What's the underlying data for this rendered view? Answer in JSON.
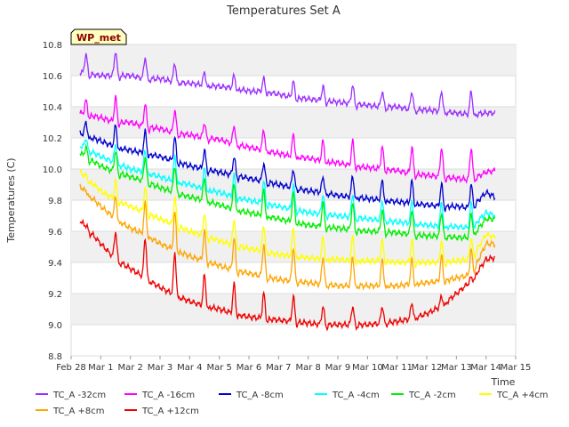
{
  "chart_data": {
    "type": "line",
    "title": "Temperatures Set A",
    "xlabel": "Time",
    "ylabel": "Temperatures (C)",
    "station_label": "WP_met",
    "x_ticks": [
      "Feb 28",
      "Mar 1",
      "Mar 2",
      "Mar 3",
      "Mar 4",
      "Mar 5",
      "Mar 6",
      "Mar 7",
      "Mar 8",
      "Mar 9",
      "Mar 10",
      "Mar 11",
      "Mar 12",
      "Mar 13",
      "Mar 14",
      "Mar 15"
    ],
    "x_tick_days": [
      0,
      1,
      2,
      3,
      4,
      5,
      6,
      7,
      8,
      9,
      10,
      11,
      12,
      13,
      14,
      15
    ],
    "xlim": [
      0,
      15
    ],
    "ylim": [
      8.8,
      10.8
    ],
    "y_ticks": [
      "8.8",
      "9.0",
      "9.2",
      "9.4",
      "9.6",
      "9.8",
      "10.0",
      "10.2",
      "10.4",
      "10.6",
      "10.8"
    ],
    "grid": "horizontal bands",
    "legend_position": "bottom",
    "x_unit": "days since Feb 28",
    "series": [
      {
        "name": "TC_A -32cm",
        "color": "#9b30ff",
        "x": [
          0.3,
          1,
          1.5,
          2,
          2.5,
          3,
          3.5,
          4,
          4.5,
          5,
          5.5,
          6,
          6.5,
          7,
          7.5,
          8,
          8.5,
          9,
          9.5,
          10,
          10.5,
          11,
          11.5,
          12,
          12.5,
          13,
          13.5,
          14,
          14.3
        ],
        "y": [
          10.62,
          10.6,
          10.6,
          10.6,
          10.58,
          10.58,
          10.56,
          10.55,
          10.54,
          10.53,
          10.52,
          10.5,
          10.5,
          10.48,
          10.46,
          10.45,
          10.44,
          10.43,
          10.42,
          10.41,
          10.4,
          10.4,
          10.38,
          10.38,
          10.37,
          10.36,
          10.35,
          10.36,
          10.36
        ],
        "peaks": [
          10.74,
          10.76,
          10.72,
          10.68,
          10.62,
          10.6,
          10.58,
          10.56,
          10.53,
          10.54,
          10.5,
          10.5,
          10.5,
          10.5,
          10.5
        ]
      },
      {
        "name": "TC_A -16cm",
        "color": "#ff00ff",
        "x": [
          0.3,
          1,
          1.5,
          2,
          2.5,
          3,
          3.5,
          4,
          4.5,
          5,
          5.5,
          6,
          6.5,
          7,
          7.5,
          8,
          8.5,
          9,
          9.5,
          10,
          10.5,
          11,
          11.5,
          12,
          12.5,
          13,
          13.5,
          14,
          14.3
        ],
        "y": [
          10.36,
          10.33,
          10.3,
          10.3,
          10.27,
          10.26,
          10.23,
          10.22,
          10.2,
          10.19,
          10.16,
          10.14,
          10.12,
          10.1,
          10.08,
          10.07,
          10.05,
          10.04,
          10.02,
          10.01,
          10.0,
          9.99,
          9.97,
          9.96,
          9.95,
          9.94,
          9.93,
          9.98,
          9.99
        ],
        "peaks": [
          10.44,
          10.46,
          10.42,
          10.38,
          10.3,
          10.28,
          10.25,
          10.22,
          10.18,
          10.18,
          10.14,
          10.14,
          10.14,
          10.14,
          10.1
        ]
      },
      {
        "name": "TC_A -8cm",
        "color": "#0000cd",
        "x": [
          0.3,
          1,
          1.5,
          2,
          2.5,
          3,
          3.5,
          4,
          4.5,
          5,
          5.5,
          6,
          6.5,
          7,
          7.5,
          8,
          8.5,
          9,
          9.5,
          10,
          10.5,
          11,
          11.5,
          12,
          12.5,
          13,
          13.5,
          14,
          14.3
        ],
        "y": [
          10.23,
          10.18,
          10.14,
          10.12,
          10.1,
          10.08,
          10.05,
          10.02,
          10.0,
          9.98,
          9.96,
          9.94,
          9.92,
          9.9,
          9.88,
          9.86,
          9.85,
          9.83,
          9.82,
          9.81,
          9.8,
          9.79,
          9.78,
          9.77,
          9.76,
          9.76,
          9.75,
          9.85,
          9.82
        ],
        "peaks": [
          10.3,
          10.28,
          10.24,
          10.2,
          10.12,
          10.08,
          10.04,
          10.0,
          9.95,
          9.95,
          9.92,
          9.92,
          9.9,
          9.9,
          9.9
        ]
      },
      {
        "name": "TC_A -4cm",
        "color": "#00ffff",
        "x": [
          0.3,
          1,
          1.5,
          2,
          2.5,
          3,
          3.5,
          4,
          4.5,
          5,
          5.5,
          6,
          6.5,
          7,
          7.5,
          8,
          8.5,
          9,
          9.5,
          10,
          10.5,
          11,
          11.5,
          12,
          12.5,
          13,
          13.5,
          14,
          14.3
        ],
        "y": [
          10.15,
          10.08,
          10.04,
          10.0,
          9.98,
          9.95,
          9.92,
          9.9,
          9.87,
          9.85,
          9.82,
          9.8,
          9.78,
          9.76,
          9.74,
          9.72,
          9.71,
          9.7,
          9.69,
          9.68,
          9.67,
          9.66,
          9.65,
          9.64,
          9.63,
          9.63,
          9.62,
          9.72,
          9.7
        ],
        "peaks": [
          10.2,
          10.16,
          10.12,
          10.08,
          10.0,
          9.96,
          9.92,
          9.9,
          9.84,
          9.84,
          9.8,
          9.8,
          9.78,
          9.78,
          9.78
        ]
      },
      {
        "name": "TC_A -2cm",
        "color": "#00ee00",
        "x": [
          0.3,
          1,
          1.5,
          2,
          2.5,
          3,
          3.5,
          4,
          4.5,
          5,
          5.5,
          6,
          6.5,
          7,
          7.5,
          8,
          8.5,
          9,
          9.5,
          10,
          10.5,
          11,
          11.5,
          12,
          12.5,
          13,
          13.5,
          14,
          14.3
        ],
        "y": [
          10.1,
          10.02,
          9.98,
          9.95,
          9.92,
          9.88,
          9.85,
          9.82,
          9.8,
          9.77,
          9.74,
          9.72,
          9.7,
          9.68,
          9.66,
          9.64,
          9.63,
          9.62,
          9.61,
          9.6,
          9.6,
          9.59,
          9.58,
          9.57,
          9.57,
          9.56,
          9.56,
          9.68,
          9.68
        ],
        "peaks": [
          10.14,
          10.12,
          10.08,
          10.02,
          9.94,
          9.9,
          9.86,
          9.84,
          9.78,
          9.78,
          9.74,
          9.74,
          9.72,
          9.72,
          9.74
        ]
      },
      {
        "name": "TC_A +4cm",
        "color": "#ffff00",
        "x": [
          0.3,
          1,
          1.5,
          2,
          2.5,
          3,
          3.5,
          4,
          4.5,
          5,
          5.5,
          6,
          6.5,
          7,
          7.5,
          8,
          8.5,
          9,
          9.5,
          10,
          10.5,
          11,
          11.5,
          12,
          12.5,
          13,
          13.5,
          14,
          14.3
        ],
        "y": [
          9.98,
          9.86,
          9.8,
          9.76,
          9.72,
          9.68,
          9.64,
          9.6,
          9.57,
          9.54,
          9.51,
          9.49,
          9.47,
          9.45,
          9.44,
          9.43,
          9.42,
          9.42,
          9.41,
          9.41,
          9.41,
          9.4,
          9.4,
          9.4,
          9.4,
          9.41,
          9.42,
          9.58,
          9.56
        ],
        "peaks": [
          9.96,
          9.92,
          9.88,
          9.82,
          9.72,
          9.68,
          9.64,
          9.62,
          9.56,
          9.56,
          9.54,
          9.54,
          9.54,
          9.56,
          9.62
        ]
      },
      {
        "name": "TC_A +8cm",
        "color": "#ffa500",
        "x": [
          0.3,
          1,
          1.5,
          2,
          2.5,
          3,
          3.5,
          4,
          4.5,
          5,
          5.5,
          6,
          6.5,
          7,
          7.5,
          8,
          8.5,
          9,
          9.5,
          10,
          10.5,
          11,
          11.5,
          12,
          12.5,
          13,
          13.5,
          14,
          14.3
        ],
        "y": [
          9.89,
          9.76,
          9.68,
          9.62,
          9.58,
          9.52,
          9.48,
          9.44,
          9.41,
          9.38,
          9.35,
          9.33,
          9.31,
          9.29,
          9.28,
          9.27,
          9.26,
          9.25,
          9.25,
          9.25,
          9.25,
          9.25,
          9.26,
          9.27,
          9.28,
          9.3,
          9.32,
          9.52,
          9.52
        ],
        "peaks": [
          9.86,
          9.82,
          9.78,
          9.72,
          9.6,
          9.56,
          9.52,
          9.5,
          9.44,
          9.44,
          9.42,
          9.42,
          9.44,
          9.48,
          9.58
        ]
      },
      {
        "name": "TC_A +12cm",
        "color": "#ee0000",
        "x": [
          0.3,
          1,
          1.5,
          2,
          2.5,
          3,
          3.5,
          4,
          4.5,
          5,
          5.5,
          6,
          6.5,
          7,
          7.5,
          8,
          8.5,
          9,
          9.5,
          10,
          10.5,
          11,
          11.5,
          12,
          12.5,
          13,
          13.5,
          14,
          14.3
        ],
        "y": [
          9.67,
          9.52,
          9.42,
          9.36,
          9.3,
          9.24,
          9.19,
          9.15,
          9.12,
          9.1,
          9.07,
          9.05,
          9.04,
          9.03,
          9.02,
          9.01,
          9.0,
          9.0,
          9.0,
          9.0,
          9.01,
          9.02,
          9.04,
          9.07,
          9.12,
          9.2,
          9.28,
          9.42,
          9.43
        ],
        "peaks": [
          9.64,
          9.6,
          9.56,
          9.46,
          9.32,
          9.26,
          9.2,
          9.18,
          9.12,
          9.12,
          9.12,
          9.14,
          9.18,
          9.3,
          9.5
        ]
      }
    ]
  }
}
